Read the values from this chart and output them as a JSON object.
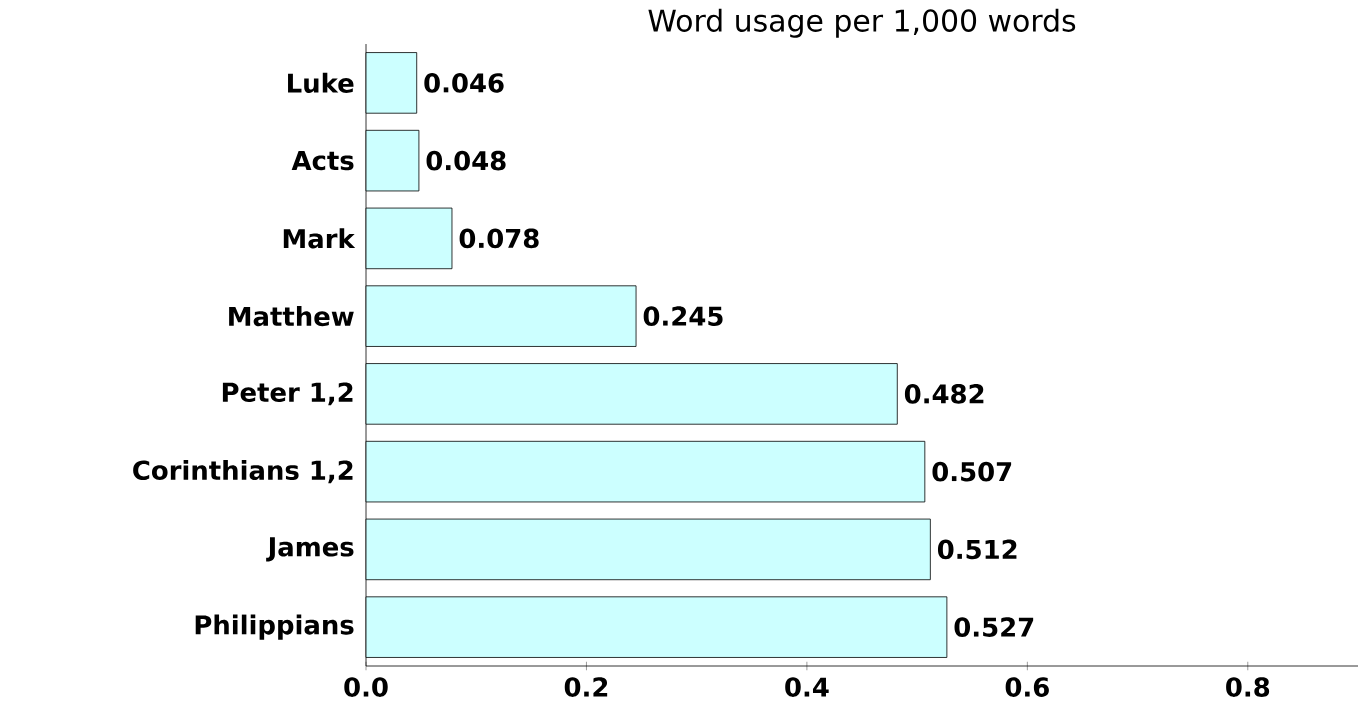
{
  "chart_data": {
    "type": "bar",
    "orientation": "horizontal",
    "title": "Word usage per 1,000 words",
    "categories": [
      "Luke",
      "Acts",
      "Mark",
      "Matthew",
      "Peter 1,2",
      "Corinthians 1,2",
      "James",
      "Philippians"
    ],
    "values": [
      0.046,
      0.048,
      0.078,
      0.245,
      0.482,
      0.507,
      0.512,
      0.527
    ],
    "value_labels": [
      "0.046",
      "0.048",
      "0.078",
      "0.245",
      "0.482",
      "0.507",
      "0.512",
      "0.527"
    ],
    "color": "#ccffff",
    "xlim": [
      0,
      0.9
    ],
    "xticks": [
      {
        "value": 0,
        "label": "0.0"
      },
      {
        "value": 0.2,
        "label": "0.2"
      },
      {
        "value": 0.4,
        "label": "0.4"
      },
      {
        "value": 0.6,
        "label": "0.6"
      },
      {
        "value": 0.8,
        "label": "0.8"
      }
    ]
  }
}
